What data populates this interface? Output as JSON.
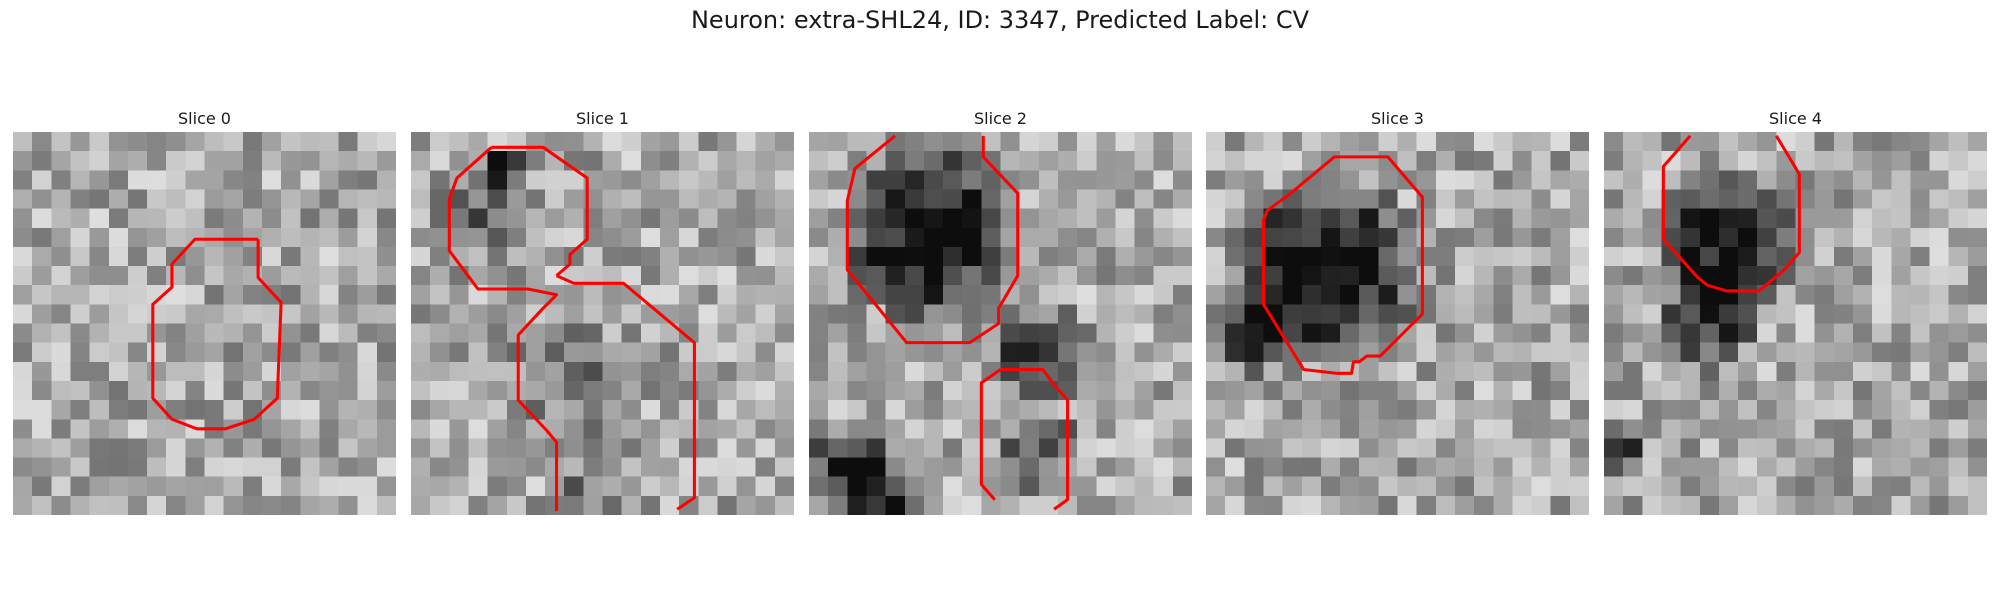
{
  "figure": {
    "title": "Neuron: extra-SHL24, ID: 3347, Predicted Label: CV"
  },
  "panels": [
    {
      "title": "Slice 0",
      "contours": [
        [
          [
            12.8,
            5.6
          ],
          [
            9.5,
            5.6
          ],
          [
            8.3,
            6.9
          ],
          [
            8.3,
            8.1
          ],
          [
            7.3,
            9.0
          ],
          [
            7.3,
            13.9
          ],
          [
            8.3,
            15.0
          ],
          [
            9.6,
            15.5
          ],
          [
            11.1,
            15.5
          ],
          [
            12.6,
            15.0
          ],
          [
            13.8,
            13.9
          ],
          [
            14.0,
            8.9
          ],
          [
            12.8,
            7.6
          ],
          [
            12.8,
            5.6
          ]
        ]
      ],
      "dark_blobs": []
    },
    {
      "title": "Slice 1",
      "contours": [
        [
          [
            4.2,
            0.8
          ],
          [
            2.4,
            2.4
          ],
          [
            2.0,
            3.5
          ],
          [
            2.0,
            6.2
          ],
          [
            3.5,
            8.2
          ],
          [
            6.1,
            8.2
          ],
          [
            7.6,
            8.5
          ],
          [
            6.9,
            9.2
          ],
          [
            5.6,
            10.6
          ],
          [
            5.6,
            14.0
          ],
          [
            7.1,
            15.6
          ],
          [
            7.6,
            16.2
          ],
          [
            7.6,
            19.8
          ]
        ],
        [
          [
            4.2,
            0.8
          ],
          [
            6.9,
            0.8
          ],
          [
            9.2,
            2.4
          ],
          [
            9.2,
            5.6
          ],
          [
            8.3,
            6.4
          ],
          [
            8.3,
            6.9
          ],
          [
            7.6,
            7.5
          ]
        ],
        [
          [
            7.6,
            7.5
          ],
          [
            8.5,
            7.9
          ],
          [
            11.1,
            7.9
          ],
          [
            14.8,
            11.0
          ],
          [
            14.8,
            19.1
          ],
          [
            13.9,
            19.7
          ]
        ]
      ],
      "dark_blobs": [
        {
          "cx": 4.6,
          "cy": 1.7,
          "r": 1.2,
          "v": 0.9
        },
        {
          "cx": 3.6,
          "cy": 4.2,
          "r": 2.8,
          "v": 0.35
        },
        {
          "cx": 8.3,
          "cy": 13.0,
          "r": 4.0,
          "v": 0.25
        },
        {
          "cx": 9.0,
          "cy": 19.5,
          "r": 2.5,
          "v": 0.3
        }
      ]
    },
    {
      "title": "Slice 2",
      "contours": [
        [
          [
            4.5,
            0.2
          ],
          [
            2.4,
            1.9
          ],
          [
            2.0,
            3.6
          ],
          [
            2.0,
            7.2
          ],
          [
            5.1,
            11.0
          ],
          [
            8.4,
            11.0
          ],
          [
            9.9,
            10.0
          ],
          [
            9.9,
            9.2
          ],
          [
            10.2,
            8.7
          ],
          [
            10.9,
            7.5
          ],
          [
            10.9,
            3.2
          ],
          [
            9.1,
            1.3
          ],
          [
            9.1,
            0.2
          ]
        ],
        [
          [
            10.0,
            12.4
          ],
          [
            9.0,
            13.1
          ],
          [
            9.0,
            18.4
          ],
          [
            9.7,
            19.2
          ]
        ],
        [
          [
            10.0,
            12.4
          ],
          [
            12.2,
            12.4
          ],
          [
            12.8,
            13.2
          ],
          [
            13.5,
            14.0
          ],
          [
            13.5,
            19.2
          ],
          [
            12.8,
            19.7
          ]
        ]
      ],
      "dark_blobs": [
        {
          "cx": 6.3,
          "cy": 5.3,
          "r": 5.2,
          "v": 0.85
        },
        {
          "cx": 11.9,
          "cy": 11.6,
          "r": 3.0,
          "v": 0.6
        },
        {
          "cx": 2.0,
          "cy": 17.5,
          "r": 2.5,
          "v": 0.7
        },
        {
          "cx": 4.0,
          "cy": 19.8,
          "r": 3.0,
          "v": 0.7
        },
        {
          "cx": 12.0,
          "cy": 16.5,
          "r": 2.5,
          "v": 0.45
        }
      ]
    },
    {
      "title": "Slice 3",
      "contours": [
        [
          [
            4.3,
            3.3
          ],
          [
            3.2,
            4.1
          ],
          [
            3.0,
            4.6
          ],
          [
            3.0,
            9.0
          ],
          [
            5.1,
            12.4
          ],
          [
            6.8,
            12.6
          ],
          [
            7.6,
            12.6
          ],
          [
            7.7,
            12.0
          ],
          [
            8.0,
            12.0
          ],
          [
            8.4,
            11.7
          ],
          [
            9.1,
            11.7
          ],
          [
            11.3,
            9.5
          ],
          [
            11.3,
            3.4
          ],
          [
            9.5,
            1.3
          ],
          [
            6.7,
            1.3
          ],
          [
            4.3,
            3.3
          ]
        ]
      ],
      "dark_blobs": [
        {
          "cx": 6.3,
          "cy": 7.3,
          "r": 5.6,
          "v": 0.85
        },
        {
          "cx": 2.5,
          "cy": 10.5,
          "r": 2.5,
          "v": 0.7
        }
      ]
    },
    {
      "title": "Slice 4",
      "contours": [
        [
          [
            4.5,
            0.2
          ],
          [
            3.1,
            1.8
          ],
          [
            3.1,
            5.6
          ],
          [
            4.9,
            7.6
          ],
          [
            5.4,
            8.0
          ],
          [
            6.4,
            8.3
          ],
          [
            8.1,
            8.3
          ],
          [
            9.4,
            7.2
          ],
          [
            10.2,
            6.3
          ],
          [
            10.2,
            2.2
          ],
          [
            9.0,
            0.2
          ]
        ]
      ],
      "dark_blobs": [
        {
          "cx": 6.5,
          "cy": 5.7,
          "r": 4.3,
          "v": 0.85
        },
        {
          "cx": 5.5,
          "cy": 9.8,
          "r": 3.0,
          "v": 0.6
        },
        {
          "cx": 0.5,
          "cy": 16.5,
          "r": 2.0,
          "v": 0.7
        }
      ]
    }
  ],
  "colors": {
    "contour": "#ff0000",
    "title_text": "#1a1a1a",
    "background": "#ffffff"
  },
  "grid_size": 20
}
